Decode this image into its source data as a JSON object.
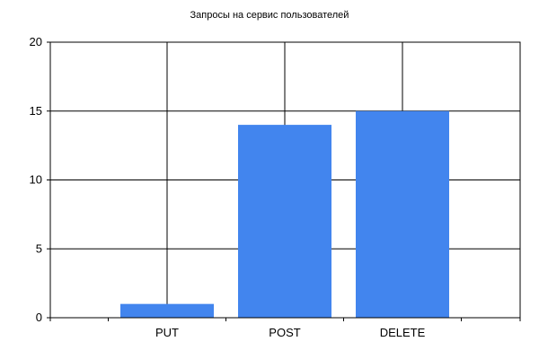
{
  "chart_data": {
    "type": "bar",
    "title": "Запросы на сервис пользователей",
    "categories": [
      "PUT",
      "POST",
      "DELETE"
    ],
    "values": [
      1,
      14,
      15
    ],
    "ylim": [
      0,
      20
    ],
    "yticks": [
      0,
      5,
      10,
      15,
      20
    ],
    "xlabel": "",
    "ylabel": "",
    "grid": true,
    "bar_color": "#4285ee"
  }
}
